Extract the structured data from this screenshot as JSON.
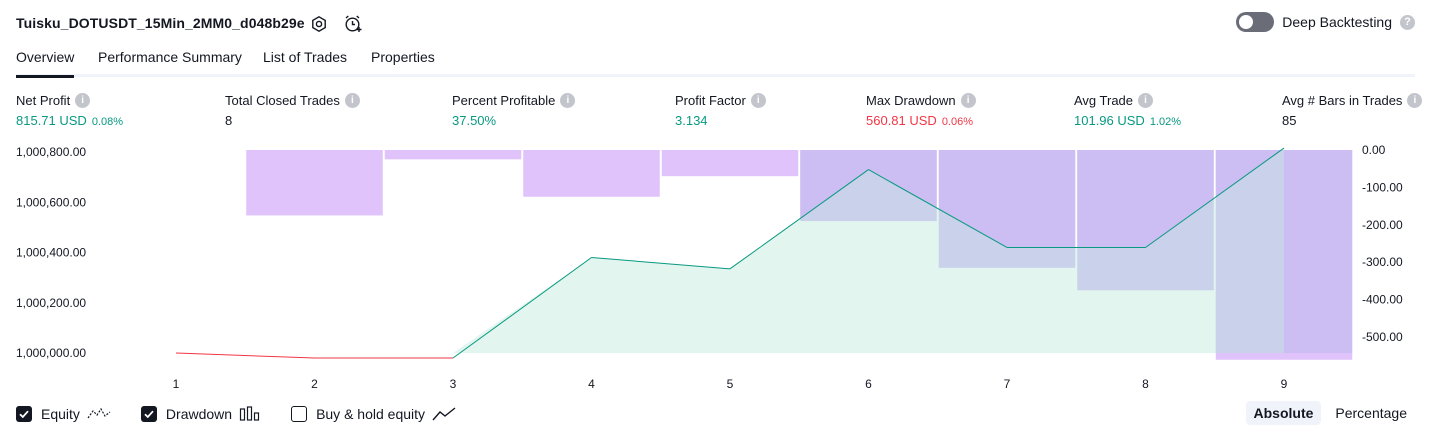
{
  "header": {
    "title": "Tuisku_DOTUSDT_15Min_2MM0_d048b29e",
    "deep_backtesting_label": "Deep Backtesting",
    "help_glyph": "?"
  },
  "tabs": [
    {
      "label": "Overview",
      "active": true
    },
    {
      "label": "Performance Summary",
      "active": false
    },
    {
      "label": "List of Trades",
      "active": false
    },
    {
      "label": "Properties",
      "active": false
    }
  ],
  "metrics": [
    {
      "label": "Net Profit",
      "value": "815.71 USD",
      "pct": "0.08%",
      "tone": "green"
    },
    {
      "label": "Total Closed Trades",
      "value": "8",
      "pct": "",
      "tone": "neutral"
    },
    {
      "label": "Percent Profitable",
      "value": "37.50%",
      "pct": "",
      "tone": "green"
    },
    {
      "label": "Profit Factor",
      "value": "3.134",
      "pct": "",
      "tone": "green"
    },
    {
      "label": "Max Drawdown",
      "value": "560.81 USD",
      "pct": "0.06%",
      "tone": "red"
    },
    {
      "label": "Avg Trade",
      "value": "101.96 USD",
      "pct": "1.02%",
      "tone": "green"
    },
    {
      "label": "Avg # Bars in Trades",
      "value": "85",
      "pct": "",
      "tone": "neutral"
    }
  ],
  "info_glyph": "i",
  "legend": {
    "equity": {
      "label": "Equity",
      "checked": true,
      "icon": "equity-line-icon"
    },
    "drawdown": {
      "label": "Drawdown",
      "checked": true,
      "icon": "bar-chart-icon"
    },
    "buy_hold": {
      "label": "Buy & hold equity",
      "checked": false,
      "icon": "trend-line-icon"
    }
  },
  "mode": {
    "absolute": "Absolute",
    "percentage": "Percentage",
    "active": "absolute"
  },
  "colors": {
    "equity_up": "#089981",
    "equity_down": "#f23645",
    "equity_fill": "#d9f1ea",
    "drawdown": "#e0c3fb",
    "overlap": "#b3b8e6"
  },
  "chart_data": {
    "type": "line",
    "x": [
      1,
      2,
      3,
      4,
      5,
      6,
      7,
      8,
      9
    ],
    "x_tick_labels": [
      "1",
      "2",
      "3",
      "4",
      "5",
      "6",
      "7",
      "8",
      "9"
    ],
    "series": [
      {
        "name": "Equity",
        "values": [
          1000000.0,
          999980.0,
          999980.0,
          1000380.0,
          1000335.0,
          1000730.0,
          1000420.0,
          1000420.0,
          1000815.71
        ]
      },
      {
        "name": "Drawdown",
        "values": [
          0,
          -175,
          -25,
          -125,
          -70,
          -190,
          -315,
          -375,
          -560.81
        ]
      }
    ],
    "left_axis": {
      "ticks": [
        "1,000,000.00",
        "1,000,200.00",
        "1,000,400.00",
        "1,000,600.00",
        "1,000,800.00"
      ],
      "range": [
        999980,
        1000815.71
      ]
    },
    "right_axis": {
      "ticks": [
        "0.00",
        "-100.00",
        "-200.00",
        "-300.00",
        "-400.00",
        "-500.00"
      ],
      "range": [
        -560.81,
        0
      ]
    },
    "grid": false
  }
}
